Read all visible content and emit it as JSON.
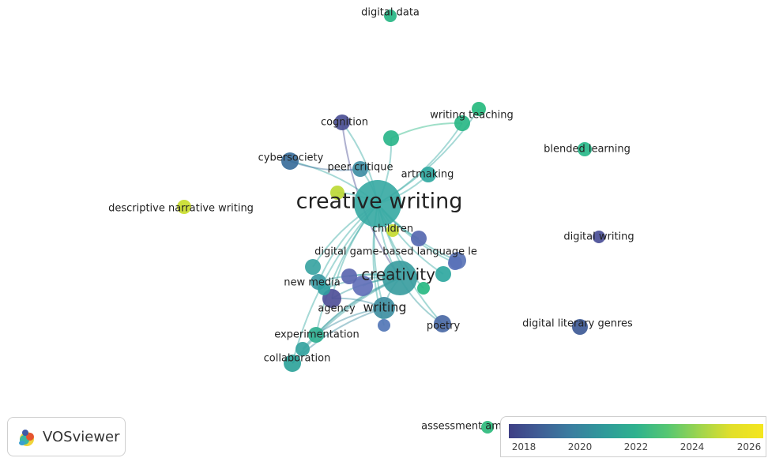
{
  "app": {
    "logo_text": "VOSviewer"
  },
  "legend": {
    "ticks": [
      "2018",
      "2020",
      "2022",
      "2024",
      "2026"
    ],
    "colors": [
      "#3e3f85",
      "#3a7fa0",
      "#2fb28e",
      "#9fd54d",
      "#f4e61e"
    ]
  },
  "network": {
    "nodes": [
      {
        "id": "creative-writing",
        "label": "creative writing",
        "color": "#3aaaa4"
      },
      {
        "id": "creativity",
        "label": "creativity",
        "color": "#3a9d9f"
      },
      {
        "id": "writing",
        "label": "writing",
        "color": "#3f8fa2"
      },
      {
        "id": "digital-data",
        "label": "digital data",
        "color": "#27b684"
      },
      {
        "id": "writing-teaching",
        "label": "writing teaching",
        "color": "#2ab786"
      },
      {
        "id": "cognition",
        "label": "cognition",
        "color": "#4b4f95"
      },
      {
        "id": "blended-learning",
        "label": "blended learning",
        "color": "#28b88a"
      },
      {
        "id": "cybersociety",
        "label": "cybersociety",
        "color": "#3a6e9b"
      },
      {
        "id": "peer-critique",
        "label": "peer critique",
        "color": "#3f8ea4"
      },
      {
        "id": "artmaking",
        "label": "artmaking",
        "color": "#2fa8a0"
      },
      {
        "id": "descriptive-narrative-writing",
        "label": "descriptive narrative writing",
        "color": "#c9dd2e"
      },
      {
        "id": "children",
        "label": "children",
        "color": "#c5db30"
      },
      {
        "id": "digital-writing",
        "label": "digital writing",
        "color": "#4a4e97"
      },
      {
        "id": "digital-game-based-language-le",
        "label": "digital game-based language le",
        "color": "#5a74b6"
      },
      {
        "id": "new-media",
        "label": "new media",
        "color": "#3a99a2"
      },
      {
        "id": "agency",
        "label": "agency",
        "color": "#4f4f98"
      },
      {
        "id": "poetry",
        "label": "poetry",
        "color": "#4a69a5"
      },
      {
        "id": "digital-literary-genres",
        "label": "digital literary genres",
        "color": "#3e5a96"
      },
      {
        "id": "experimentation",
        "label": "experimentation",
        "color": "#30b091"
      },
      {
        "id": "collaboration",
        "label": "collaboration",
        "color": "#2fa39a"
      },
      {
        "id": "assessment",
        "label": "assessment amo",
        "color": "#2dba7c"
      },
      {
        "id": "n-green-top",
        "label": "",
        "color": "#2ab58a"
      },
      {
        "id": "n-green-top2",
        "label": "",
        "color": "#26ba7e"
      },
      {
        "id": "n-purple-1",
        "label": "",
        "color": "#5668b0"
      },
      {
        "id": "n-purple-2",
        "label": "",
        "color": "#5a72b8"
      },
      {
        "id": "n-purple-3",
        "label": "",
        "color": "#6270b8"
      },
      {
        "id": "n-purple-4",
        "label": "",
        "color": "#5b66b0"
      },
      {
        "id": "n-teal-1",
        "label": "",
        "color": "#3aa4a2"
      },
      {
        "id": "n-teal-2",
        "label": "",
        "color": "#2fa79f"
      },
      {
        "id": "n-green-1",
        "label": "",
        "color": "#27b882"
      },
      {
        "id": "n-blue-1",
        "label": "",
        "color": "#5276b6"
      },
      {
        "id": "n-lime-1",
        "label": "",
        "color": "#bcd935"
      },
      {
        "id": "n-teal-3",
        "label": "",
        "color": "#35a3a0"
      },
      {
        "id": "n-teal-4",
        "label": "",
        "color": "#2f9ea0"
      }
    ],
    "edges": [
      [
        "creative-writing",
        "creativity"
      ],
      [
        "creative-writing",
        "writing"
      ],
      [
        "creative-writing",
        "cognition"
      ],
      [
        "creative-writing",
        "writing-teaching"
      ],
      [
        "creative-writing",
        "cybersociety"
      ],
      [
        "creative-writing",
        "peer-critique"
      ],
      [
        "creative-writing",
        "artmaking"
      ],
      [
        "creative-writing",
        "children"
      ],
      [
        "creative-writing",
        "new-media"
      ],
      [
        "creative-writing",
        "agency"
      ],
      [
        "creative-writing",
        "poetry"
      ],
      [
        "creative-writing",
        "experimentation"
      ],
      [
        "creative-writing",
        "collaboration"
      ],
      [
        "creative-writing",
        "digital-game-based-language-le"
      ],
      [
        "creative-writing",
        "n-green-top"
      ],
      [
        "creative-writing",
        "n-green-top2"
      ],
      [
        "creative-writing",
        "n-purple-1"
      ],
      [
        "creative-writing",
        "n-purple-2"
      ],
      [
        "creative-writing",
        "n-teal-1"
      ],
      [
        "creative-writing",
        "n-teal-2"
      ],
      [
        "creative-writing",
        "n-green-1"
      ],
      [
        "creative-writing",
        "n-blue-1"
      ],
      [
        "creative-writing",
        "n-lime-1"
      ],
      [
        "creativity",
        "writing"
      ],
      [
        "creativity",
        "new-media"
      ],
      [
        "creativity",
        "agency"
      ],
      [
        "creativity",
        "poetry"
      ],
      [
        "creativity",
        "experimentation"
      ],
      [
        "creativity",
        "collaboration"
      ],
      [
        "creativity",
        "n-purple-3"
      ],
      [
        "creativity",
        "n-purple-4"
      ],
      [
        "creativity",
        "n-teal-3"
      ],
      [
        "creativity",
        "n-teal-4"
      ],
      [
        "writing",
        "experimentation"
      ],
      [
        "writing",
        "collaboration"
      ],
      [
        "writing",
        "agency"
      ],
      [
        "writing-teaching",
        "n-green-top"
      ],
      [
        "cognition",
        "creativity"
      ],
      [
        "cybersociety",
        "peer-critique"
      ]
    ]
  }
}
